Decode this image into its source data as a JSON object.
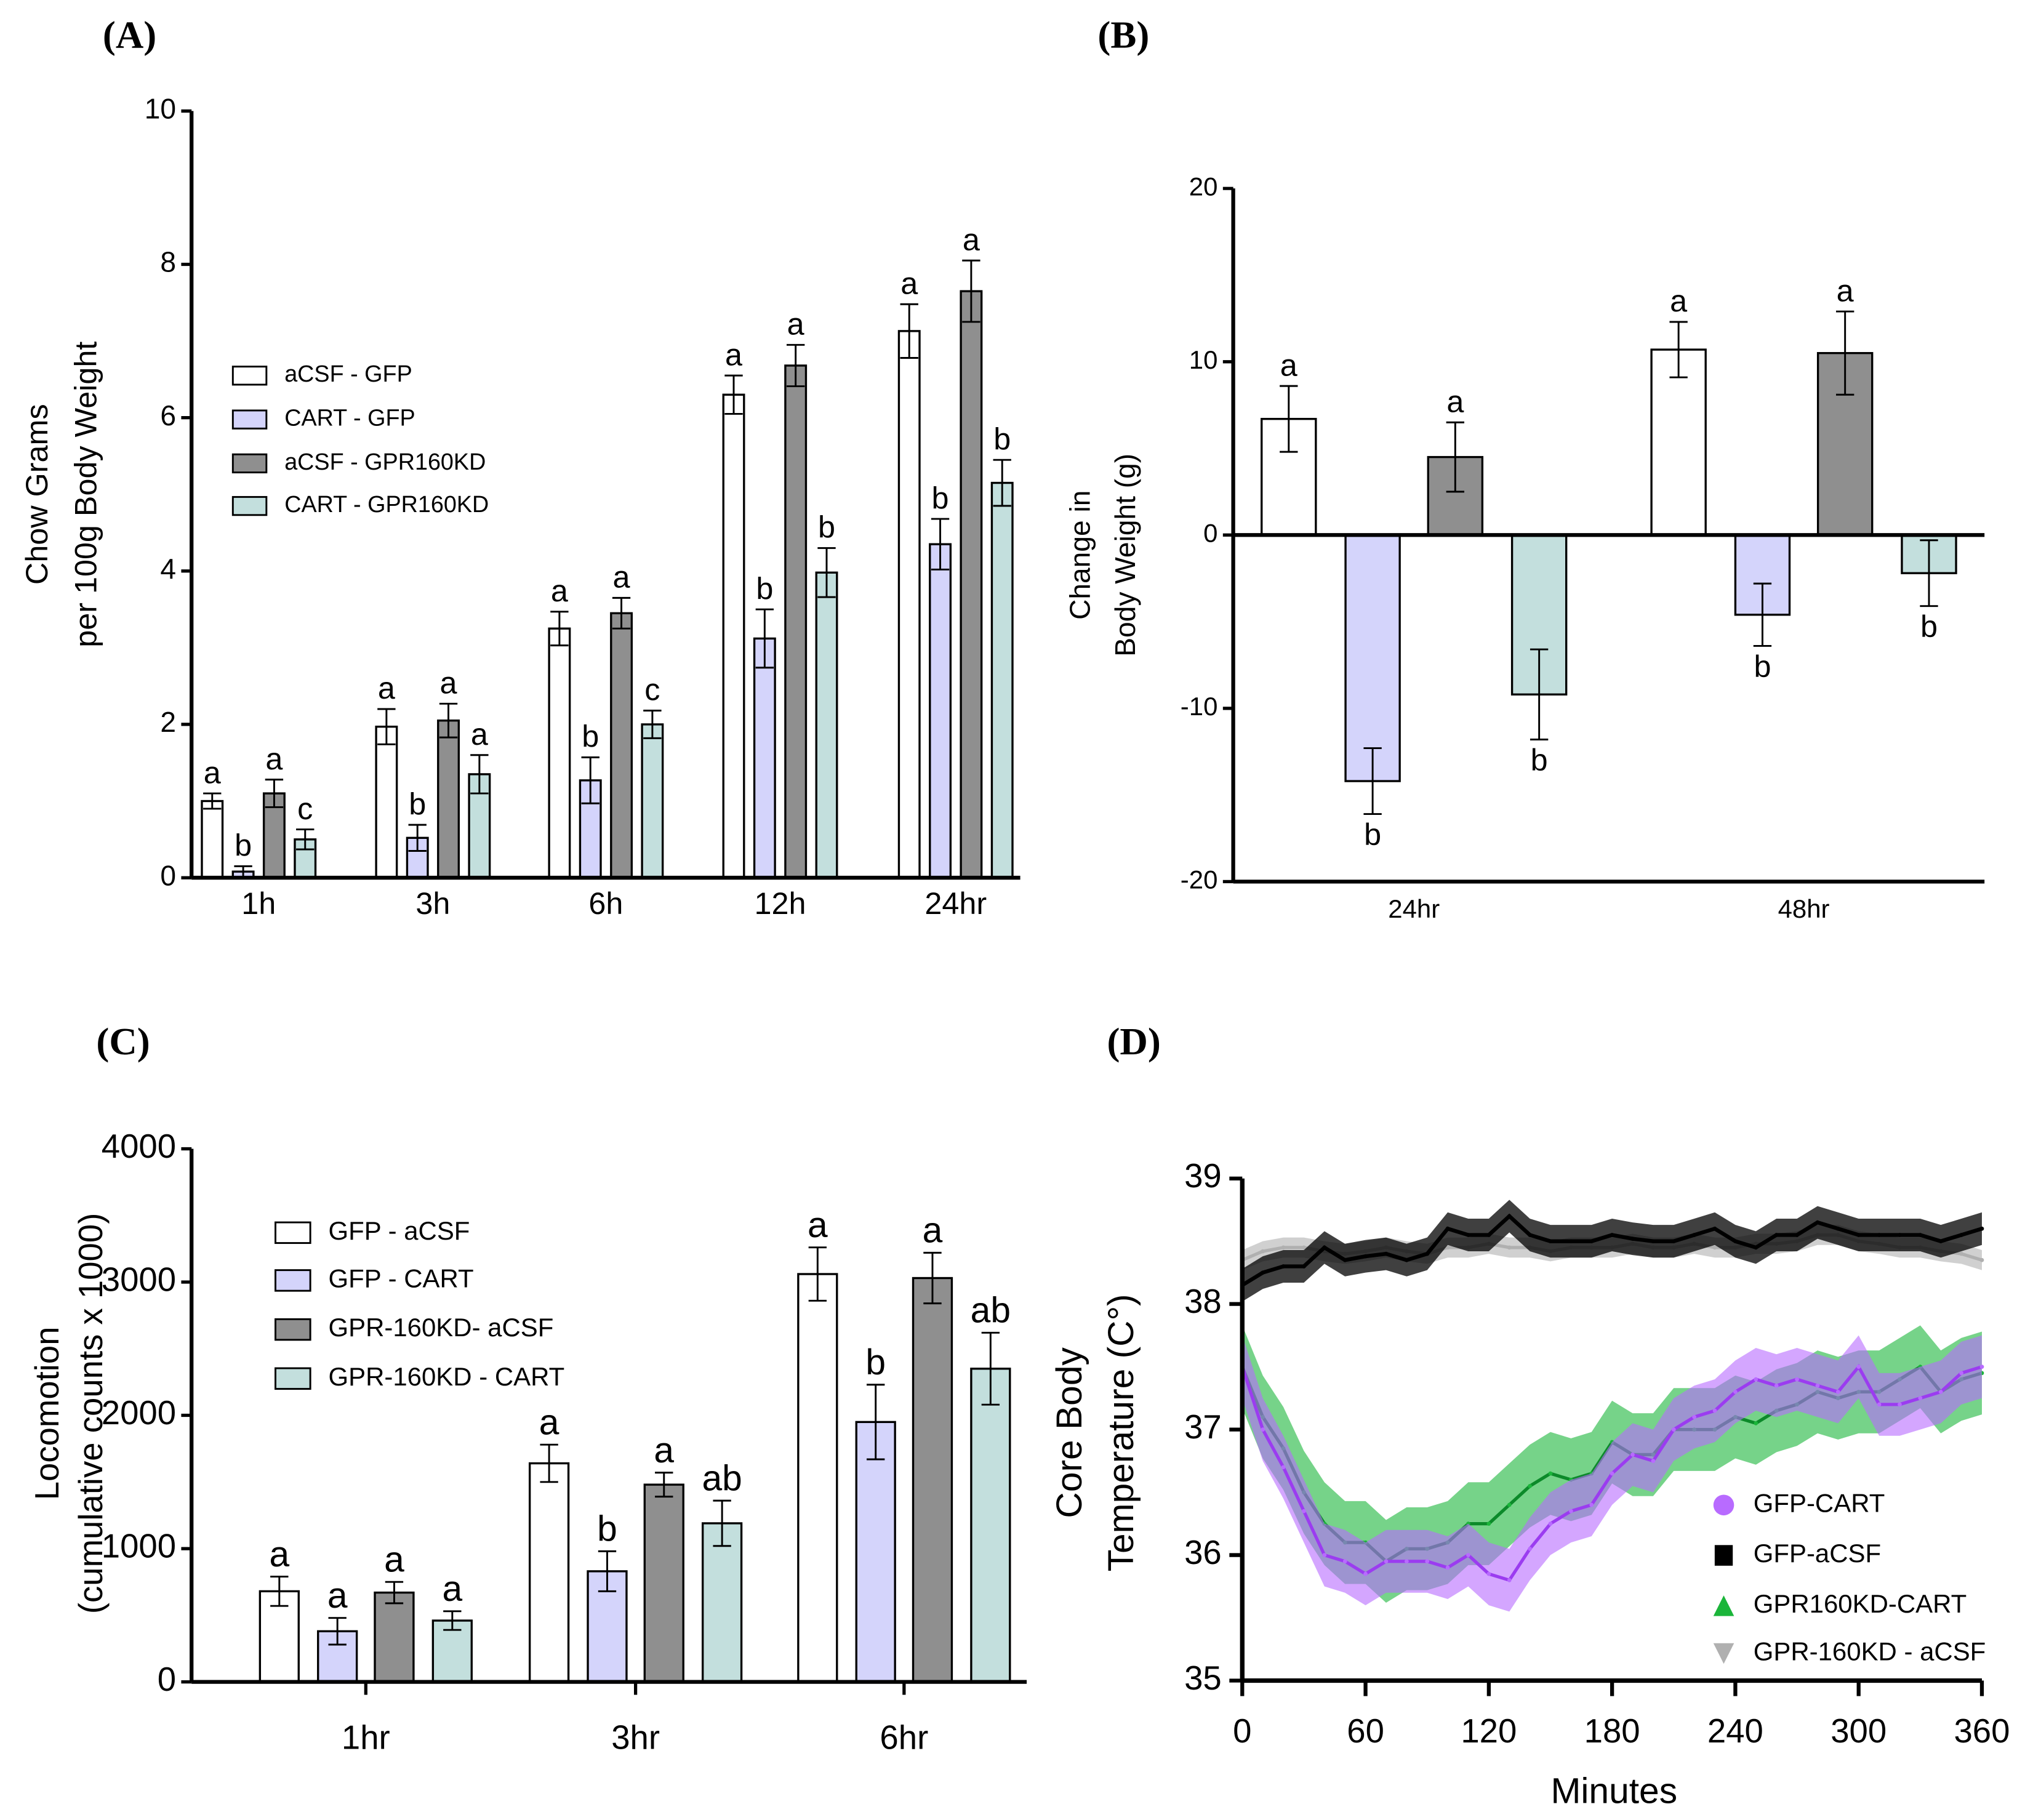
{
  "chart_data": [
    {
      "panel_label": "(A)",
      "type": "bar",
      "ylabel": [
        "Chow Grams",
        "per 100g Body Weight"
      ],
      "xlabel": "",
      "ylim": [
        0,
        10
      ],
      "yticks": [
        "0",
        "2",
        "4",
        "6",
        "8",
        "10"
      ],
      "categories": [
        "1h",
        "3h",
        "6h",
        "12h",
        "24hr"
      ],
      "legend_position": "upper-left",
      "series": [
        {
          "name": "aCSF - GFP",
          "color": "#ffffff",
          "values": [
            1.0,
            1.97,
            3.25,
            6.3,
            7.13
          ],
          "errors": [
            0.1,
            0.23,
            0.22,
            0.25,
            0.35
          ],
          "letters": [
            "a",
            "a",
            "a",
            "a",
            "a"
          ]
        },
        {
          "name": "CART - GFP",
          "color": "#d4d4fb",
          "values": [
            0.08,
            0.52,
            1.27,
            3.12,
            4.35
          ],
          "errors": [
            0.07,
            0.17,
            0.3,
            0.38,
            0.33
          ],
          "letters": [
            "b",
            "b",
            "b",
            "b",
            "b"
          ]
        },
        {
          "name": "aCSF - GPR160KD",
          "color": "#8f8f8f",
          "values": [
            1.1,
            2.05,
            3.45,
            6.68,
            7.65
          ],
          "errors": [
            0.18,
            0.22,
            0.2,
            0.27,
            0.4
          ],
          "letters": [
            "a",
            "a",
            "a",
            "a",
            "a"
          ]
        },
        {
          "name": "CART - GPR160KD",
          "color": "#c3dfdd",
          "values": [
            0.5,
            1.35,
            2.0,
            3.98,
            5.15
          ],
          "errors": [
            0.13,
            0.25,
            0.18,
            0.32,
            0.3
          ],
          "letters": [
            "c",
            "a",
            "c",
            "b",
            "b"
          ]
        }
      ]
    },
    {
      "panel_label": "(B)",
      "type": "bar",
      "ylabel": [
        "Change in",
        "Body Weight (g)"
      ],
      "ylim": [
        -20,
        20
      ],
      "yticks": [
        "-20",
        "-10",
        "0",
        "10",
        "20"
      ],
      "categories": [
        "24hr",
        "48hr"
      ],
      "series": [
        {
          "color": "#ffffff",
          "values": [
            6.7,
            10.7
          ],
          "errors": [
            1.9,
            1.6
          ],
          "letters": [
            "a",
            "a"
          ]
        },
        {
          "color": "#d4d4fb",
          "values": [
            -14.2,
            -4.6
          ],
          "errors": [
            1.9,
            1.8
          ],
          "letters": [
            "b",
            "b"
          ]
        },
        {
          "color": "#8f8f8f",
          "values": [
            4.5,
            10.5
          ],
          "errors": [
            2.0,
            2.4
          ],
          "letters": [
            "a",
            "a"
          ]
        },
        {
          "color": "#c3dfdd",
          "values": [
            -9.2,
            -2.2
          ],
          "errors": [
            2.6,
            1.9
          ],
          "letters": [
            "b",
            "b"
          ]
        }
      ]
    },
    {
      "panel_label": "(C)",
      "type": "bar",
      "ylabel": [
        "Locomotion",
        "(cumulative counts x 1000)"
      ],
      "ylim": [
        0,
        4000
      ],
      "yticks": [
        "0",
        "1000",
        "2000",
        "3000",
        "4000"
      ],
      "categories": [
        "1hr",
        "3hr",
        "6hr"
      ],
      "legend_position": "upper-left",
      "series": [
        {
          "name": "GFP - aCSF",
          "color": "#ffffff",
          "values": [
            680,
            1640,
            3060
          ],
          "errors": [
            110,
            140,
            200
          ],
          "letters": [
            "a",
            "a",
            "a"
          ]
        },
        {
          "name": "GFP - CART",
          "color": "#d4d4fb",
          "values": [
            380,
            830,
            1950
          ],
          "errors": [
            100,
            150,
            280
          ],
          "letters": [
            "a",
            "b",
            "b"
          ]
        },
        {
          "name": "GPR-160KD- aCSF",
          "color": "#8f8f8f",
          "values": [
            670,
            1480,
            3030
          ],
          "errors": [
            80,
            90,
            190
          ],
          "letters": [
            "a",
            "a",
            "a"
          ]
        },
        {
          "name": "GPR-160KD - CART",
          "color": "#c3dfdd",
          "values": [
            460,
            1190,
            2350
          ],
          "errors": [
            70,
            170,
            270
          ],
          "letters": [
            "a",
            "ab",
            "ab"
          ]
        }
      ]
    },
    {
      "panel_label": "(D)",
      "type": "line",
      "ylabel": [
        "Core Body",
        "Temperature (C°)"
      ],
      "xlabel": "Minutes",
      "ylim": [
        35,
        39
      ],
      "xlim": [
        0,
        360
      ],
      "yticks": [
        "35",
        "36",
        "37",
        "38",
        "39"
      ],
      "xticks": [
        "0",
        "60",
        "120",
        "180",
        "240",
        "300",
        "360"
      ],
      "legend_position": "lower-right",
      "x": [
        0,
        10,
        20,
        30,
        40,
        50,
        60,
        70,
        80,
        90,
        100,
        110,
        120,
        130,
        140,
        150,
        160,
        170,
        180,
        190,
        200,
        210,
        220,
        230,
        240,
        250,
        260,
        270,
        280,
        290,
        300,
        310,
        320,
        330,
        340,
        350,
        360
      ],
      "series": [
        {
          "name": "GPR-160KD - aCSF",
          "marker": "triangle-down",
          "color": "#b0b0b0",
          "error": 0.08,
          "values": [
            38.35,
            38.42,
            38.45,
            38.45,
            38.42,
            38.4,
            38.42,
            38.45,
            38.42,
            38.4,
            38.45,
            38.45,
            38.48,
            38.45,
            38.45,
            38.42,
            38.45,
            38.45,
            38.45,
            38.48,
            38.45,
            38.45,
            38.48,
            38.45,
            38.45,
            38.48,
            38.48,
            38.5,
            38.55,
            38.55,
            38.5,
            38.48,
            38.45,
            38.45,
            38.42,
            38.4,
            38.35
          ]
        },
        {
          "name": "GFP-aCSF",
          "marker": "square",
          "color": "#000000",
          "error": 0.13,
          "values": [
            38.15,
            38.25,
            38.3,
            38.3,
            38.45,
            38.35,
            38.38,
            38.4,
            38.35,
            38.4,
            38.6,
            38.55,
            38.55,
            38.7,
            38.55,
            38.5,
            38.5,
            38.5,
            38.55,
            38.52,
            38.5,
            38.5,
            38.55,
            38.6,
            38.5,
            38.45,
            38.55,
            38.55,
            38.65,
            38.6,
            38.55,
            38.55,
            38.55,
            38.55,
            38.5,
            38.55,
            38.6
          ]
        },
        {
          "name": "GPR160KD-CART",
          "marker": "triangle-up",
          "color": "#1bb53a",
          "error": 0.33,
          "values": [
            37.5,
            37.1,
            36.85,
            36.5,
            36.25,
            36.1,
            36.1,
            35.95,
            36.05,
            36.05,
            36.1,
            36.25,
            36.25,
            36.4,
            36.55,
            36.65,
            36.6,
            36.65,
            36.9,
            36.8,
            36.8,
            37.0,
            37.0,
            37.0,
            37.1,
            37.05,
            37.15,
            37.2,
            37.3,
            37.25,
            37.3,
            37.3,
            37.4,
            37.5,
            37.3,
            37.4,
            37.45
          ]
        },
        {
          "name": "GFP-CART",
          "marker": "circle",
          "color": "#b86bff",
          "error": 0.25,
          "values": [
            37.5,
            37.0,
            36.7,
            36.35,
            36.0,
            35.95,
            35.85,
            35.95,
            35.95,
            35.95,
            35.9,
            36.0,
            35.85,
            35.8,
            36.05,
            36.25,
            36.35,
            36.4,
            36.65,
            36.8,
            36.75,
            37.0,
            37.1,
            37.15,
            37.3,
            37.4,
            37.35,
            37.4,
            37.35,
            37.3,
            37.5,
            37.2,
            37.2,
            37.25,
            37.3,
            37.45,
            37.5
          ]
        }
      ]
    }
  ]
}
